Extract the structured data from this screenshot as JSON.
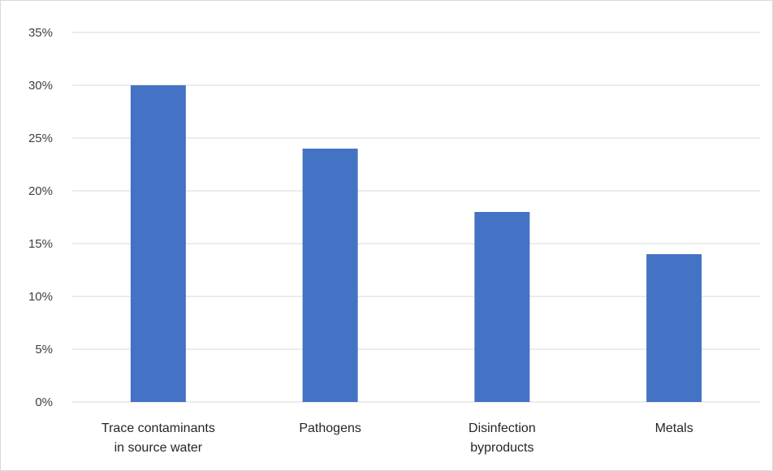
{
  "chart_data": {
    "type": "bar",
    "title": "",
    "xlabel": "",
    "ylabel": "",
    "categories": [
      [
        "Trace contaminants",
        "in source water"
      ],
      [
        "Pathogens"
      ],
      [
        "Disinfection",
        "byproducts"
      ],
      [
        "Metals"
      ]
    ],
    "values": [
      30,
      24,
      18,
      14
    ],
    "ylim": [
      0,
      35
    ],
    "yticks": [
      0,
      5,
      10,
      15,
      20,
      25,
      30,
      35
    ],
    "ytick_labels": [
      "0%",
      "5%",
      "10%",
      "15%",
      "20%",
      "25%",
      "30%",
      "35%"
    ],
    "grid": true,
    "legend": "none",
    "bar_color": "#4472c4",
    "grid_color": "#d9d9d9"
  }
}
